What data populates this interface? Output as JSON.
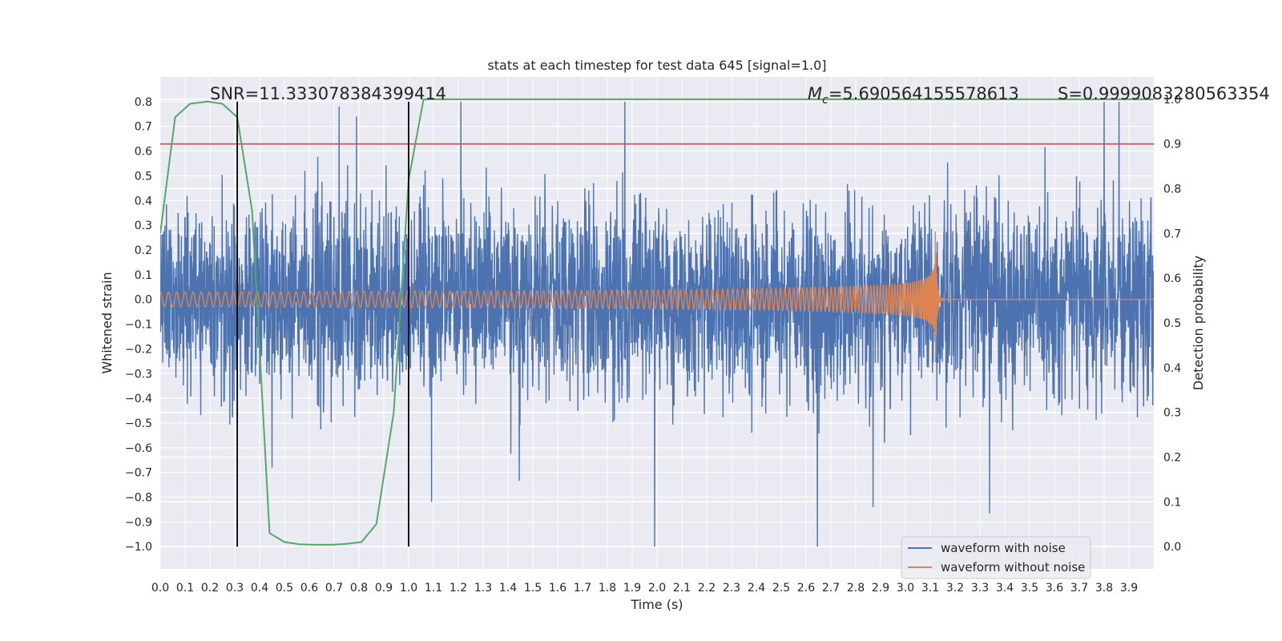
{
  "chart_data": {
    "type": "line",
    "title": "stats at each timestep for test data 645 [signal=1.0]",
    "xlabel": "Time (s)",
    "ylabel": "Whitened strain",
    "y2label": "Detection probability",
    "xlim": [
      0.0,
      4.0
    ],
    "ylim": [
      -1.09,
      0.9
    ],
    "y2lim": [
      -0.05,
      1.05
    ],
    "x_ticks": [
      "0.0",
      "0.1",
      "0.2",
      "0.3",
      "0.4",
      "0.5",
      "0.6",
      "0.7",
      "0.8",
      "0.9",
      "1.0",
      "1.1",
      "1.2",
      "1.3",
      "1.4",
      "1.5",
      "1.6",
      "1.7",
      "1.8",
      "1.9",
      "2.0",
      "2.1",
      "2.2",
      "2.3",
      "2.4",
      "2.5",
      "2.6",
      "2.7",
      "2.8",
      "2.9",
      "3.0",
      "3.1",
      "3.2",
      "3.3",
      "3.4",
      "3.5",
      "3.6",
      "3.7",
      "3.8",
      "3.9"
    ],
    "y_ticks": [
      "0.8",
      "0.7",
      "0.6",
      "0.5",
      "0.4",
      "0.3",
      "0.2",
      "0.1",
      "0.0",
      "−0.1",
      "−0.2",
      "−0.3",
      "−0.4",
      "−0.5",
      "−0.6",
      "−0.7",
      "−0.8",
      "−0.9",
      "−1.0"
    ],
    "y2_ticks": [
      "1.0",
      "0.9",
      "0.8",
      "0.7",
      "0.6",
      "0.5",
      "0.4",
      "0.3",
      "0.2",
      "0.1",
      "0.0"
    ],
    "annotations": {
      "snr": "SNR=11.333078384399414",
      "mc_symbol": "M",
      "mc_sub": "c",
      "mc_value": "=5.690564155578613",
      "s": "S=0.9999083280563354"
    },
    "threshold_probability": 0.9,
    "vertical_lines": [
      0.31,
      1.0
    ],
    "noise_amplitude": 0.45,
    "noise_extremes": [
      {
        "x": 1.21,
        "y": 0.8
      },
      {
        "x": 1.87,
        "y": 0.8
      },
      {
        "x": 3.86,
        "y": 0.8
      },
      {
        "x": 3.8,
        "y": 0.8
      },
      {
        "x": 1.99,
        "y": -1.0
      },
      {
        "x": 2.87,
        "y": -0.84
      },
      {
        "x": 0.72,
        "y": 0.78
      },
      {
        "x": 0.79,
        "y": 0.74
      },
      {
        "x": 0.45,
        "y": -0.68
      }
    ],
    "clean_waveform": {
      "start_amplitude": 0.03,
      "peak_time": 3.12,
      "peak_amplitude": 0.32,
      "start_freq": 30
    },
    "probability_series": {
      "name": "Detection probability",
      "x": [
        0.0,
        0.06,
        0.12,
        0.19,
        0.25,
        0.31,
        0.37,
        0.44,
        0.5,
        0.56,
        0.62,
        0.69,
        0.75,
        0.81,
        0.87,
        0.94,
        1.0,
        1.06,
        1.12,
        4.0
      ],
      "y": [
        0.7,
        0.96,
        0.99,
        0.995,
        0.99,
        0.96,
        0.75,
        0.03,
        0.01,
        0.005,
        0.004,
        0.004,
        0.006,
        0.01,
        0.05,
        0.3,
        0.82,
        1.0,
        1.0,
        1.0
      ]
    },
    "legend": {
      "position": "lower-right",
      "entries": [
        {
          "label": "waveform with noise",
          "color": "#4c72b0"
        },
        {
          "label": "waveform without noise",
          "color": "#dd8452"
        }
      ]
    },
    "colors": {
      "noise": "#4c72b0",
      "clean": "#dd8452",
      "probability": "#55a868",
      "threshold": "#c44e52",
      "marker": "#000000",
      "background": "#eaeaf2",
      "grid": "#ffffff"
    }
  }
}
